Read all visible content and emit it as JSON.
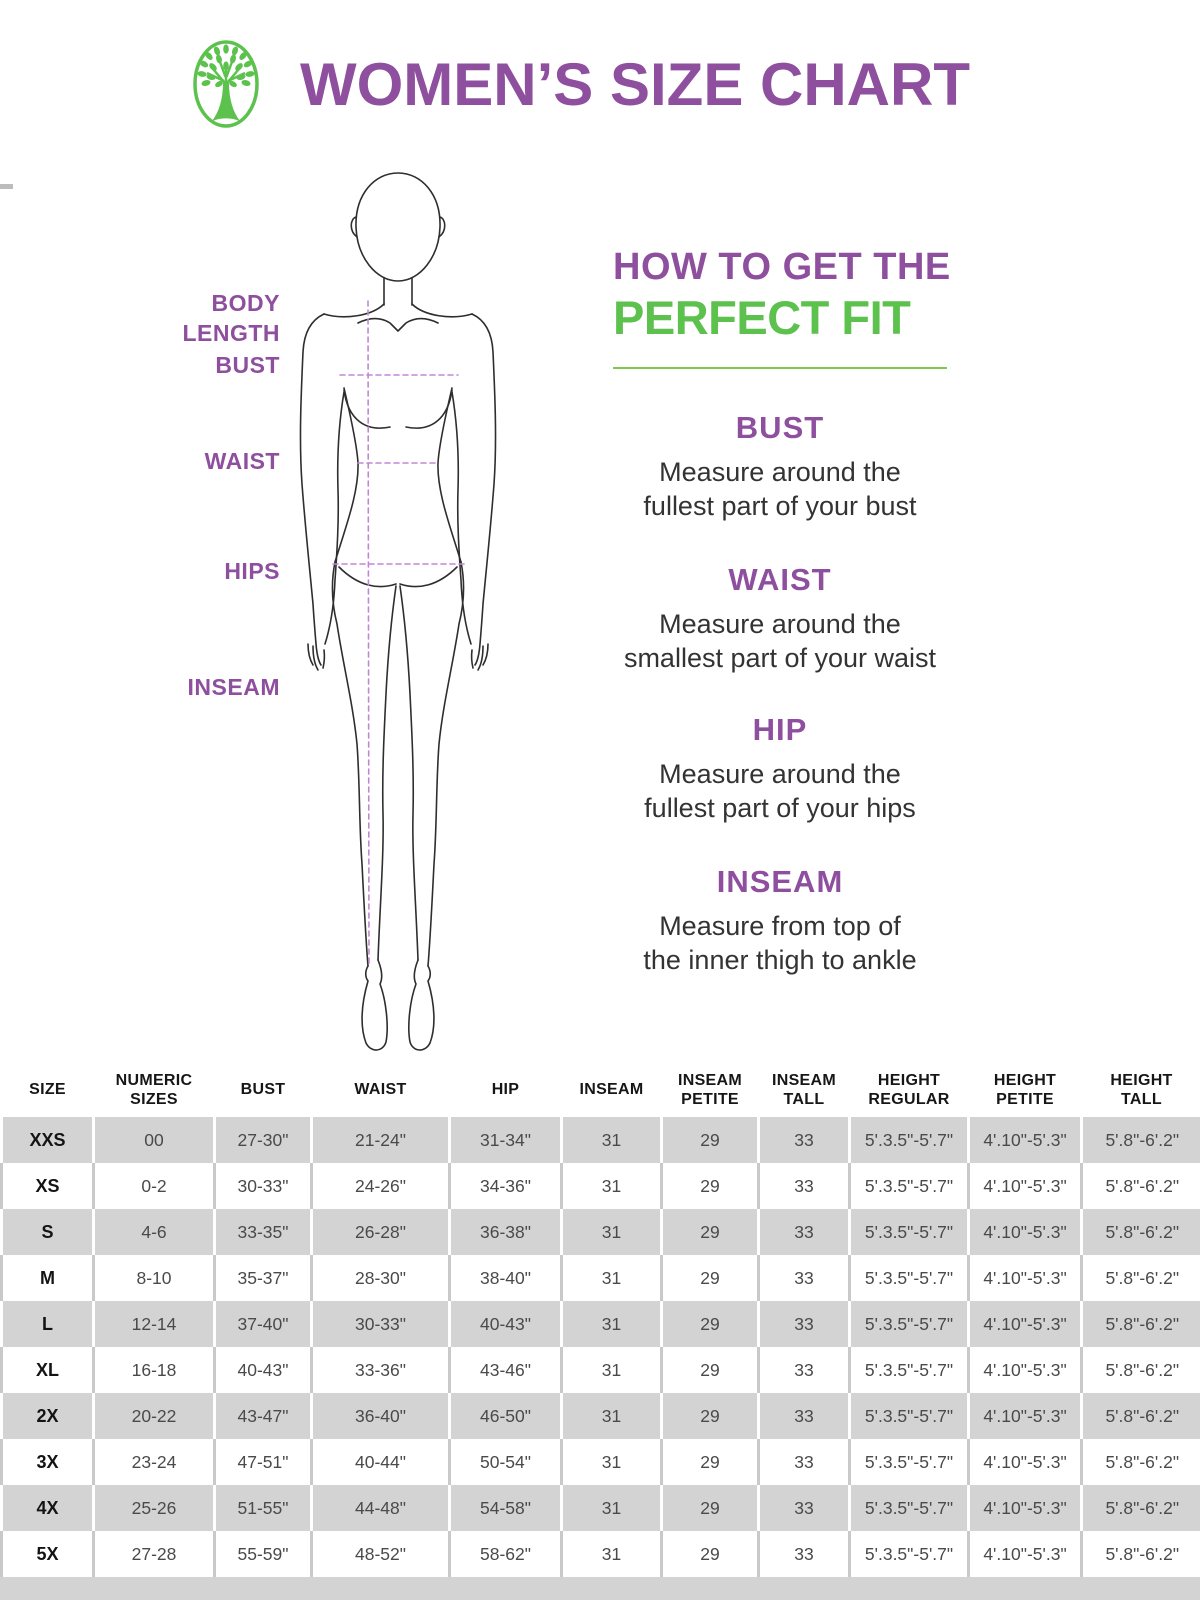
{
  "header": {
    "title": "WOMEN’S SIZE CHART",
    "logo": "tree-logo"
  },
  "figure": {
    "labels": [
      "BODY\nLENGTH",
      "BUST",
      "WAIST",
      "HIPS",
      "INSEAM"
    ]
  },
  "guide": {
    "heading_line1": "HOW TO GET THE",
    "heading_line2": "PERFECT FIT",
    "sections": [
      {
        "title": "BUST",
        "line1": "Measure around the",
        "line2": "fullest part of your bust"
      },
      {
        "title": "WAIST",
        "line1": "Measure around the",
        "line2": "smallest part of your waist"
      },
      {
        "title": "HIP",
        "line1": "Measure around the",
        "line2": "fullest part of your hips"
      },
      {
        "title": "INSEAM",
        "line1": "Measure from top of",
        "line2": "the inner thigh to ankle"
      }
    ]
  },
  "table": {
    "columns": [
      [
        "SIZE"
      ],
      [
        "NUMERIC",
        "SIZES"
      ],
      [
        "BUST"
      ],
      [
        "WAIST"
      ],
      [
        "HIP"
      ],
      [
        "INSEAM"
      ],
      [
        "INSEAM",
        "PETITE"
      ],
      [
        "INSEAM",
        "TALL"
      ],
      [
        "HEIGHT",
        "REGULAR"
      ],
      [
        "HEIGHT",
        "PETITE"
      ],
      [
        "HEIGHT",
        "TALL"
      ]
    ],
    "rows": [
      [
        "XXS",
        "00",
        "27-30\"",
        "21-24\"",
        "31-34\"",
        "31",
        "29",
        "33",
        "5'.3.5\"-5'.7\"",
        "4'.10\"-5'.3\"",
        "5'.8\"-6'.2\""
      ],
      [
        "XS",
        "0-2",
        "30-33\"",
        "24-26\"",
        "34-36\"",
        "31",
        "29",
        "33",
        "5'.3.5\"-5'.7\"",
        "4'.10\"-5'.3\"",
        "5'.8\"-6'.2\""
      ],
      [
        "S",
        "4-6",
        "33-35\"",
        "26-28\"",
        "36-38\"",
        "31",
        "29",
        "33",
        "5'.3.5\"-5'.7\"",
        "4'.10\"-5'.3\"",
        "5'.8\"-6'.2\""
      ],
      [
        "M",
        "8-10",
        "35-37\"",
        "28-30\"",
        "38-40\"",
        "31",
        "29",
        "33",
        "5'.3.5\"-5'.7\"",
        "4'.10\"-5'.3\"",
        "5'.8\"-6'.2\""
      ],
      [
        "L",
        "12-14",
        "37-40\"",
        "30-33\"",
        "40-43\"",
        "31",
        "29",
        "33",
        "5'.3.5\"-5'.7\"",
        "4'.10\"-5'.3\"",
        "5'.8\"-6'.2\""
      ],
      [
        "XL",
        "16-18",
        "40-43\"",
        "33-36\"",
        "43-46\"",
        "31",
        "29",
        "33",
        "5'.3.5\"-5'.7\"",
        "4'.10\"-5'.3\"",
        "5'.8\"-6'.2\""
      ],
      [
        "2X",
        "20-22",
        "43-47\"",
        "36-40\"",
        "46-50\"",
        "31",
        "29",
        "33",
        "5'.3.5\"-5'.7\"",
        "4'.10\"-5'.3\"",
        "5'.8\"-6'.2\""
      ],
      [
        "3X",
        "23-24",
        "47-51\"",
        "40-44\"",
        "50-54\"",
        "31",
        "29",
        "33",
        "5'.3.5\"-5'.7\"",
        "4'.10\"-5'.3\"",
        "5'.8\"-6'.2\""
      ],
      [
        "4X",
        "25-26",
        "51-55\"",
        "44-48\"",
        "54-58\"",
        "31",
        "29",
        "33",
        "5'.3.5\"-5'.7\"",
        "4'.10\"-5'.3\"",
        "5'.8\"-6'.2\""
      ],
      [
        "5X",
        "27-28",
        "55-59\"",
        "48-52\"",
        "58-62\"",
        "31",
        "29",
        "33",
        "5'.3.5\"-5'.7\"",
        "4'.10\"-5'.3\"",
        "5'.8\"-6'.2\""
      ]
    ]
  },
  "colors": {
    "purple": "#8e4f9e",
    "green": "#5cc24d",
    "divider_green": "#7dc94e",
    "row_gray": "#d3d3d3",
    "dash_purple": "#c287d2"
  }
}
